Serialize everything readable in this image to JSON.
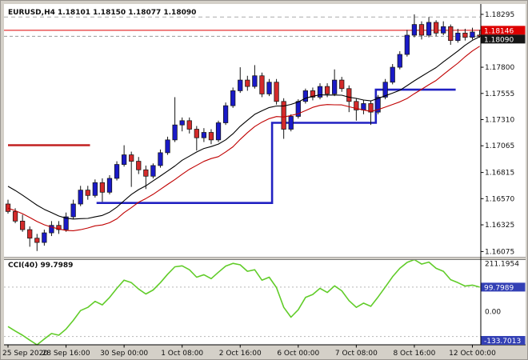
{
  "header": {
    "title": "EURUSD,H4 1.18101 1.18150 1.18077 1.18090"
  },
  "indicator_header": {
    "title": "CCI(40) 99.7989"
  },
  "colors": {
    "window_bg": "#d4d0c8",
    "plot_bg": "#ffffff",
    "frame": "#7a7a7a",
    "scale_line": "#000000",
    "bull": "#1a1ac8",
    "bear": "#d42a2a",
    "wick": "#151515",
    "ma_black": "#000000",
    "ma_red": "#c00000",
    "step_red": "#c22020",
    "step_blue": "#2020c2",
    "ask_line": "#e00000",
    "bid_line": "#999999",
    "ask_badge_bg": "#dd0000",
    "bid_badge_bg": "#151515",
    "cci_line": "#61cc29",
    "cci_badge_bg": "#3340b5",
    "level_dotted": "#b8b8b8",
    "text": "#111111",
    "badge_text": "#ffffff"
  },
  "chart_data": [
    {
      "type": "candlestick",
      "title": "EURUSD,H4",
      "ohlc_display": {
        "open": "1.18101",
        "high": "1.18150",
        "low": "1.18077",
        "close": "1.18090"
      },
      "x_tick_labels": [
        "25 Sep 2020",
        "28 Sep 16:00",
        "30 Sep 00:00",
        "1 Oct 08:00",
        "2 Oct 16:00",
        "6 Oct 00:00",
        "7 Oct 08:00",
        "8 Oct 16:00",
        "12 Oct 00:00"
      ],
      "x_tick_every": 8,
      "y_ticks": [
        "1.18295",
        "1.17800",
        "1.17555",
        "1.17310",
        "1.17065",
        "1.16815",
        "1.16570",
        "1.16325",
        "1.16075"
      ],
      "y_range": [
        1.16022,
        1.18392
      ],
      "ask_line": {
        "price": 1.18146,
        "label": "1.18146"
      },
      "bid_line": {
        "price": 1.1809,
        "label": "1.18090"
      },
      "dashed_level": 1.1827,
      "candles": [
        [
          1.1652,
          1.1656,
          1.1643,
          1.1645
        ],
        [
          1.1645,
          1.1648,
          1.1634,
          1.1636
        ],
        [
          1.1636,
          1.1642,
          1.1626,
          1.1628
        ],
        [
          1.1628,
          1.1631,
          1.1612,
          1.162
        ],
        [
          1.162,
          1.1624,
          1.1608,
          1.1616
        ],
        [
          1.1616,
          1.1628,
          1.1613,
          1.1625
        ],
        [
          1.1625,
          1.1636,
          1.1622,
          1.1632
        ],
        [
          1.1632,
          1.1636,
          1.1624,
          1.1628
        ],
        [
          1.1628,
          1.1644,
          1.1626,
          1.164
        ],
        [
          1.164,
          1.1656,
          1.1638,
          1.1652
        ],
        [
          1.1652,
          1.1669,
          1.165,
          1.1665
        ],
        [
          1.1665,
          1.1669,
          1.1656,
          1.166
        ],
        [
          1.166,
          1.1675,
          1.1658,
          1.1672
        ],
        [
          1.1672,
          1.1676,
          1.1654,
          1.1663
        ],
        [
          1.1663,
          1.1679,
          1.1661,
          1.1676
        ],
        [
          1.1676,
          1.1692,
          1.1674,
          1.1689
        ],
        [
          1.1689,
          1.1707,
          1.1687,
          1.1698
        ],
        [
          1.1698,
          1.1701,
          1.1668,
          1.1692
        ],
        [
          1.1692,
          1.1696,
          1.168,
          1.1684
        ],
        [
          1.1684,
          1.1688,
          1.1666,
          1.1678
        ],
        [
          1.1678,
          1.169,
          1.1676,
          1.1688
        ],
        [
          1.1688,
          1.1703,
          1.1686,
          1.17
        ],
        [
          1.17,
          1.1715,
          1.1698,
          1.1712
        ],
        [
          1.1712,
          1.1752,
          1.171,
          1.1726
        ],
        [
          1.1726,
          1.1733,
          1.172,
          1.173
        ],
        [
          1.173,
          1.1733,
          1.1718,
          1.1722
        ],
        [
          1.1722,
          1.1725,
          1.1702,
          1.1714
        ],
        [
          1.1714,
          1.1723,
          1.171,
          1.1719
        ],
        [
          1.1719,
          1.1722,
          1.1708,
          1.1712
        ],
        [
          1.1712,
          1.173,
          1.171,
          1.1728
        ],
        [
          1.1728,
          1.1747,
          1.1726,
          1.1744
        ],
        [
          1.1744,
          1.1761,
          1.1742,
          1.1758
        ],
        [
          1.1758,
          1.178,
          1.1756,
          1.1768
        ],
        [
          1.1768,
          1.1772,
          1.1758,
          1.1762
        ],
        [
          1.1762,
          1.1782,
          1.176,
          1.1772
        ],
        [
          1.1772,
          1.1775,
          1.1752,
          1.1755
        ],
        [
          1.1755,
          1.1769,
          1.1753,
          1.1766
        ],
        [
          1.1766,
          1.1769,
          1.1745,
          1.1748
        ],
        [
          1.1748,
          1.1751,
          1.1713,
          1.1722
        ],
        [
          1.1722,
          1.1736,
          1.172,
          1.1734
        ],
        [
          1.1734,
          1.175,
          1.1732,
          1.1748
        ],
        [
          1.1748,
          1.176,
          1.1746,
          1.1758
        ],
        [
          1.1758,
          1.1761,
          1.1749,
          1.1752
        ],
        [
          1.1752,
          1.1765,
          1.175,
          1.1762
        ],
        [
          1.1762,
          1.1765,
          1.1752,
          1.1755
        ],
        [
          1.1755,
          1.1778,
          1.1753,
          1.1768
        ],
        [
          1.1768,
          1.1771,
          1.1757,
          1.176
        ],
        [
          1.176,
          1.1763,
          1.1738,
          1.1748
        ],
        [
          1.1748,
          1.1751,
          1.173,
          1.174
        ],
        [
          1.174,
          1.1749,
          1.1736,
          1.1746
        ],
        [
          1.1746,
          1.1749,
          1.1726,
          1.1738
        ],
        [
          1.1738,
          1.1754,
          1.1736,
          1.1752
        ],
        [
          1.1752,
          1.1769,
          1.175,
          1.1766
        ],
        [
          1.1766,
          1.1783,
          1.1764,
          1.178
        ],
        [
          1.178,
          1.1795,
          1.1778,
          1.1792
        ],
        [
          1.1792,
          1.1815,
          1.179,
          1.181
        ],
        [
          1.181,
          1.18295,
          1.1808,
          1.182
        ],
        [
          1.182,
          1.1823,
          1.1806,
          1.181
        ],
        [
          1.181,
          1.1827,
          1.1808,
          1.1822
        ],
        [
          1.1822,
          1.1824,
          1.1809,
          1.1812
        ],
        [
          1.1812,
          1.1823,
          1.181,
          1.1818
        ],
        [
          1.1818,
          1.182,
          1.1801,
          1.1805
        ],
        [
          1.1805,
          1.1816,
          1.1803,
          1.1812
        ],
        [
          1.1812,
          1.1816,
          1.1805,
          1.1808
        ],
        [
          1.1808,
          1.1817,
          1.1806,
          1.1813
        ],
        [
          1.18101,
          1.1815,
          1.18077,
          1.1809
        ]
      ],
      "ma": [
        {
          "period": 13,
          "source": "close",
          "color": "#000000",
          "seed": [
            1.169,
            1.1687,
            1.1684,
            1.1681,
            1.1678,
            1.1675,
            1.1672,
            1.1669,
            1.1666,
            1.1663,
            1.166,
            1.1657,
            1.1654
          ]
        },
        {
          "period": 13,
          "source": "low",
          "color": "#c00000",
          "seed": [
            1.1668,
            1.1665,
            1.1662,
            1.1659,
            1.1656,
            1.1653,
            1.165,
            1.1647,
            1.1644,
            1.1641,
            1.1638,
            1.1635,
            1.1632
          ]
        }
      ],
      "step_lines": [
        {
          "color": "#c22020",
          "width": 2.6,
          "points": [
            [
              0,
              1.1707
            ],
            [
              11.3,
              1.1707
            ]
          ]
        },
        {
          "color": "#2020c2",
          "width": 2.6,
          "points": [
            [
              12.2,
              1.1653
            ],
            [
              36.4,
              1.1653
            ],
            [
              36.4,
              1.1728
            ],
            [
              50.7,
              1.1728
            ],
            [
              50.7,
              1.1759
            ],
            [
              61.7,
              1.1759
            ]
          ]
        }
      ]
    },
    {
      "type": "line",
      "name": "CCI(40)",
      "value_display": "99.7989",
      "color": "#61cc29",
      "levels": [
        100,
        -100
      ],
      "y_range": [
        -133.7013,
        211.1954
      ],
      "y_labels": {
        "max": "211.1954",
        "current_badge": "99.7989",
        "zero": "0.00",
        "min_badge": "-133.7013"
      },
      "values": [
        -60,
        -78,
        -95,
        -115,
        -133.7013,
        -110,
        -88,
        -95,
        -70,
        -35,
        5,
        18,
        42,
        28,
        58,
        95,
        128,
        118,
        92,
        72,
        88,
        118,
        152,
        182,
        186,
        170,
        140,
        150,
        134,
        160,
        185,
        196,
        190,
        164,
        170,
        128,
        140,
        98,
        18,
        -22,
        8,
        58,
        70,
        95,
        78,
        105,
        85,
        45,
        18,
        35,
        22,
        60,
        100,
        142,
        176,
        200,
        211.1954,
        193,
        201,
        176,
        164,
        130,
        118,
        104,
        108,
        99.7989
      ]
    }
  ]
}
